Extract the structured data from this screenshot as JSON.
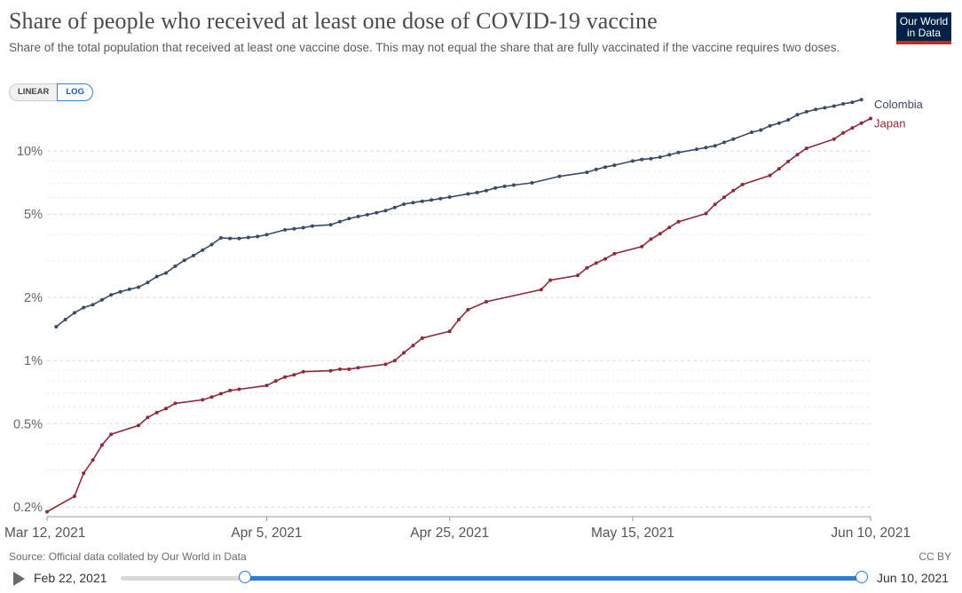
{
  "header": {
    "title": "Share of people who received at least one dose of COVID-19 vaccine",
    "subtitle": "Share of the total population that received at least one vaccine dose. This may not equal the share that are fully vaccinated if the vaccine requires two doses.",
    "logo_line1": "Our World",
    "logo_line2": "in Data"
  },
  "scale_toggle": {
    "linear_label": "LINEAR",
    "log_label": "LOG",
    "selected": "LOG"
  },
  "footer": {
    "source": "Source: Official data collated by Our World in Data",
    "license": "CC BY"
  },
  "timeline": {
    "start_label": "Feb 22, 2021",
    "end_label": "Jun 10, 2021",
    "selected_start_fraction": 0.168,
    "selected_end_fraction": 1.0
  },
  "colors": {
    "colombia": "#3a4a63",
    "japan": "#8b2a38",
    "accent": "#2e7bd1"
  },
  "chart_data": {
    "type": "line",
    "title": "Share of people who received at least one dose of COVID-19 vaccine",
    "scale": "log",
    "ylim": [
      0.18,
      16
    ],
    "yticks": [
      0.2,
      0.5,
      1,
      2,
      5,
      10
    ],
    "ytick_labels": [
      "0.2%",
      "0.5%",
      "1%",
      "2%",
      "5%",
      "10%"
    ],
    "xlim": [
      "2021-03-12",
      "2021-06-10"
    ],
    "xticks": [
      "2021-03-12",
      "2021-04-05",
      "2021-04-25",
      "2021-05-15",
      "2021-06-10"
    ],
    "xtick_labels": [
      "Mar 12, 2021",
      "Apr 5, 2021",
      "Apr 25, 2021",
      "May 15, 2021",
      "Jun 10, 2021"
    ],
    "legend": "inline-right",
    "grid": true,
    "series": [
      {
        "name": "Colombia",
        "color": "#3a4a63",
        "points": [
          [
            "2021-03-13",
            1.45
          ],
          [
            "2021-03-14",
            1.57
          ],
          [
            "2021-03-15",
            1.69
          ],
          [
            "2021-03-16",
            1.79
          ],
          [
            "2021-03-17",
            1.85
          ],
          [
            "2021-03-18",
            1.95
          ],
          [
            "2021-03-19",
            2.06
          ],
          [
            "2021-03-20",
            2.13
          ],
          [
            "2021-03-21",
            2.19
          ],
          [
            "2021-03-22",
            2.24
          ],
          [
            "2021-03-23",
            2.36
          ],
          [
            "2021-03-24",
            2.52
          ],
          [
            "2021-03-25",
            2.62
          ],
          [
            "2021-03-26",
            2.82
          ],
          [
            "2021-03-27",
            3.01
          ],
          [
            "2021-03-28",
            3.17
          ],
          [
            "2021-03-29",
            3.37
          ],
          [
            "2021-03-30",
            3.58
          ],
          [
            "2021-03-31",
            3.85
          ],
          [
            "2021-04-01",
            3.83
          ],
          [
            "2021-04-02",
            3.83
          ],
          [
            "2021-04-03",
            3.87
          ],
          [
            "2021-04-04",
            3.91
          ],
          [
            "2021-04-05",
            3.99
          ],
          [
            "2021-04-07",
            4.21
          ],
          [
            "2021-04-08",
            4.26
          ],
          [
            "2021-04-09",
            4.31
          ],
          [
            "2021-04-10",
            4.39
          ],
          [
            "2021-04-12",
            4.45
          ],
          [
            "2021-04-13",
            4.61
          ],
          [
            "2021-04-14",
            4.76
          ],
          [
            "2021-04-15",
            4.87
          ],
          [
            "2021-04-16",
            4.97
          ],
          [
            "2021-04-17",
            5.08
          ],
          [
            "2021-04-18",
            5.2
          ],
          [
            "2021-04-19",
            5.38
          ],
          [
            "2021-04-20",
            5.58
          ],
          [
            "2021-04-21",
            5.68
          ],
          [
            "2021-04-22",
            5.76
          ],
          [
            "2021-04-23",
            5.84
          ],
          [
            "2021-04-24",
            5.93
          ],
          [
            "2021-04-25",
            6.03
          ],
          [
            "2021-04-27",
            6.25
          ],
          [
            "2021-04-28",
            6.34
          ],
          [
            "2021-04-29",
            6.48
          ],
          [
            "2021-04-30",
            6.67
          ],
          [
            "2021-05-01",
            6.79
          ],
          [
            "2021-05-02",
            6.88
          ],
          [
            "2021-05-04",
            7.05
          ],
          [
            "2021-05-07",
            7.58
          ],
          [
            "2021-05-10",
            7.92
          ],
          [
            "2021-05-11",
            8.17
          ],
          [
            "2021-05-12",
            8.39
          ],
          [
            "2021-05-13",
            8.56
          ],
          [
            "2021-05-15",
            8.96
          ],
          [
            "2021-05-16",
            9.12
          ],
          [
            "2021-05-17",
            9.2
          ],
          [
            "2021-05-18",
            9.36
          ],
          [
            "2021-05-19",
            9.6
          ],
          [
            "2021-05-20",
            9.84
          ],
          [
            "2021-05-22",
            10.2
          ],
          [
            "2021-05-23",
            10.4
          ],
          [
            "2021-05-24",
            10.6
          ],
          [
            "2021-05-25",
            11.0
          ],
          [
            "2021-05-26",
            11.4
          ],
          [
            "2021-05-28",
            12.3
          ],
          [
            "2021-05-29",
            12.6
          ],
          [
            "2021-05-30",
            13.2
          ],
          [
            "2021-05-31",
            13.6
          ],
          [
            "2021-06-01",
            14.1
          ],
          [
            "2021-06-02",
            14.9
          ],
          [
            "2021-06-03",
            15.4
          ],
          [
            "2021-06-04",
            15.8
          ],
          [
            "2021-06-05",
            16.1
          ],
          [
            "2021-06-06",
            16.4
          ],
          [
            "2021-06-07",
            16.8
          ],
          [
            "2021-06-08",
            17.1
          ],
          [
            "2021-06-09",
            17.6
          ]
        ]
      },
      {
        "name": "Japan",
        "color": "#8b2a38",
        "points": [
          [
            "2021-03-12",
            0.19
          ],
          [
            "2021-03-15",
            0.225
          ],
          [
            "2021-03-16",
            0.29
          ],
          [
            "2021-03-17",
            0.335
          ],
          [
            "2021-03-18",
            0.395
          ],
          [
            "2021-03-19",
            0.445
          ],
          [
            "2021-03-22",
            0.49
          ],
          [
            "2021-03-23",
            0.535
          ],
          [
            "2021-03-24",
            0.565
          ],
          [
            "2021-03-25",
            0.59
          ],
          [
            "2021-03-26",
            0.625
          ],
          [
            "2021-03-29",
            0.65
          ],
          [
            "2021-03-30",
            0.67
          ],
          [
            "2021-03-31",
            0.695
          ],
          [
            "2021-04-01",
            0.72
          ],
          [
            "2021-04-02",
            0.73
          ],
          [
            "2021-04-05",
            0.76
          ],
          [
            "2021-04-06",
            0.8
          ],
          [
            "2021-04-07",
            0.835
          ],
          [
            "2021-04-08",
            0.855
          ],
          [
            "2021-04-09",
            0.885
          ],
          [
            "2021-04-12",
            0.895
          ],
          [
            "2021-04-13",
            0.91
          ],
          [
            "2021-04-14",
            0.91
          ],
          [
            "2021-04-15",
            0.925
          ],
          [
            "2021-04-18",
            0.96
          ],
          [
            "2021-04-19",
            1.0
          ],
          [
            "2021-04-20",
            1.09
          ],
          [
            "2021-04-21",
            1.18
          ],
          [
            "2021-04-22",
            1.28
          ],
          [
            "2021-04-25",
            1.38
          ],
          [
            "2021-04-26",
            1.57
          ],
          [
            "2021-04-27",
            1.75
          ],
          [
            "2021-04-29",
            1.91
          ],
          [
            "2021-05-05",
            2.18
          ],
          [
            "2021-05-06",
            2.42
          ],
          [
            "2021-05-09",
            2.55
          ],
          [
            "2021-05-10",
            2.77
          ],
          [
            "2021-05-11",
            2.92
          ],
          [
            "2021-05-12",
            3.06
          ],
          [
            "2021-05-13",
            3.24
          ],
          [
            "2021-05-16",
            3.5
          ],
          [
            "2021-05-17",
            3.8
          ],
          [
            "2021-05-18",
            4.03
          ],
          [
            "2021-05-19",
            4.32
          ],
          [
            "2021-05-20",
            4.6
          ],
          [
            "2021-05-23",
            5.03
          ],
          [
            "2021-05-24",
            5.57
          ],
          [
            "2021-05-25",
            6.02
          ],
          [
            "2021-05-26",
            6.47
          ],
          [
            "2021-05-27",
            6.92
          ],
          [
            "2021-05-30",
            7.65
          ],
          [
            "2021-05-31",
            8.23
          ],
          [
            "2021-06-01",
            8.92
          ],
          [
            "2021-06-02",
            9.62
          ],
          [
            "2021-06-03",
            10.3
          ],
          [
            "2021-06-06",
            11.4
          ],
          [
            "2021-06-07",
            12.2
          ],
          [
            "2021-06-08",
            12.9
          ],
          [
            "2021-06-09",
            13.6
          ],
          [
            "2021-06-10",
            14.3
          ]
        ]
      }
    ]
  }
}
